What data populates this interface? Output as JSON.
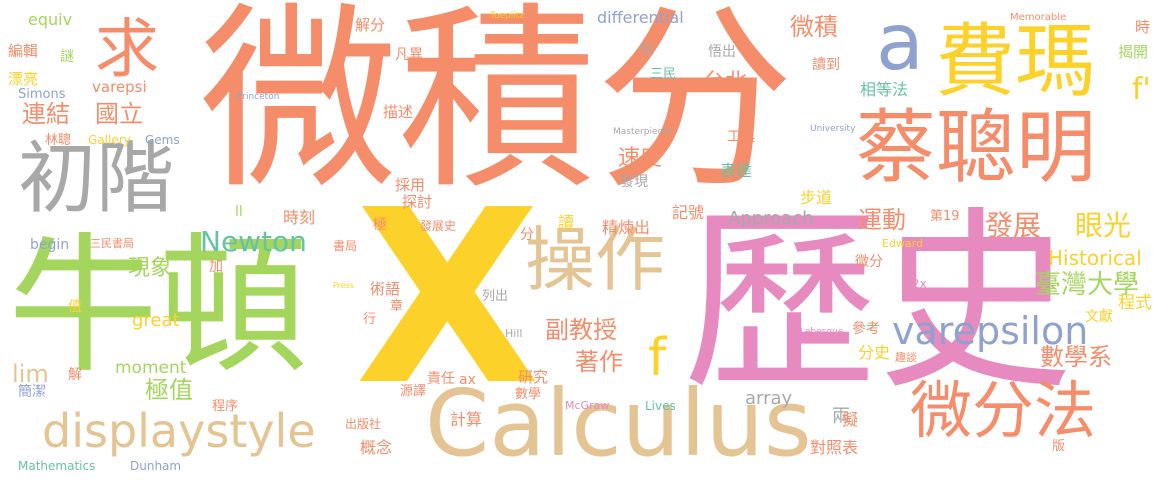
{
  "palette": {
    "orange": "#f58d6b",
    "yellow": "#fcd12a",
    "green": "#a4d65e",
    "pink": "#e68ac0",
    "gray": "#a8a8a8",
    "blue": "#8fa2cf",
    "teal": "#66c2a5",
    "tan": "#e5c494"
  },
  "words": [
    "微積分",
    "歷史",
    "X",
    "牛頓",
    "Calculus",
    "蔡聰明",
    "費瑪",
    "初階",
    "操作",
    "微分法",
    "displaystyle",
    "a",
    "求",
    "varepsilon",
    "f",
    "Newton",
    "臺灣大學",
    "發展",
    "眼光",
    "運動",
    "數學系",
    "f'",
    "副教授",
    "著作",
    "極值",
    "現象",
    "速度",
    "台北",
    "國立",
    "連結",
    "微積",
    "lim",
    "differential",
    "Historical",
    "程式",
    "Approach",
    "moment",
    "great",
    "array",
    "相等法",
    "表達",
    "步道",
    "精煉出",
    "時刻",
    "計算",
    "概念",
    "對照表",
    "研究",
    "記號",
    "解分",
    "凡異",
    "描述",
    "探討",
    "採用",
    "術語",
    "兩",
    "擬",
    "分史",
    "參考",
    "微分",
    "文獻",
    "揭開",
    "時",
    "讀到",
    "工具",
    "發現",
    "悟出",
    "似",
    "三民",
    "章",
    "謎",
    "編輯",
    "漂亮",
    "equiv",
    "Simons",
    "varepsi",
    "林聰",
    "Gallery",
    "Gems",
    "begin",
    "三民書局",
    "書局",
    "發展史",
    "第19",
    "ll",
    "極",
    "讀",
    "分",
    "加",
    "值",
    "解",
    "簡潔",
    "程序",
    "源譯",
    "責任",
    "ax",
    "數學",
    "出版社",
    "行",
    "列出",
    "Hill",
    "McGraw",
    "Lives",
    "版",
    "趣談",
    "2x",
    "Lebesgue",
    "Edward",
    "Dunham",
    "Mathematics",
    "Toeplitz",
    "Princeton",
    "Memorable",
    "University",
    "Masterpieces",
    "Press",
    "s"
  ]
}
